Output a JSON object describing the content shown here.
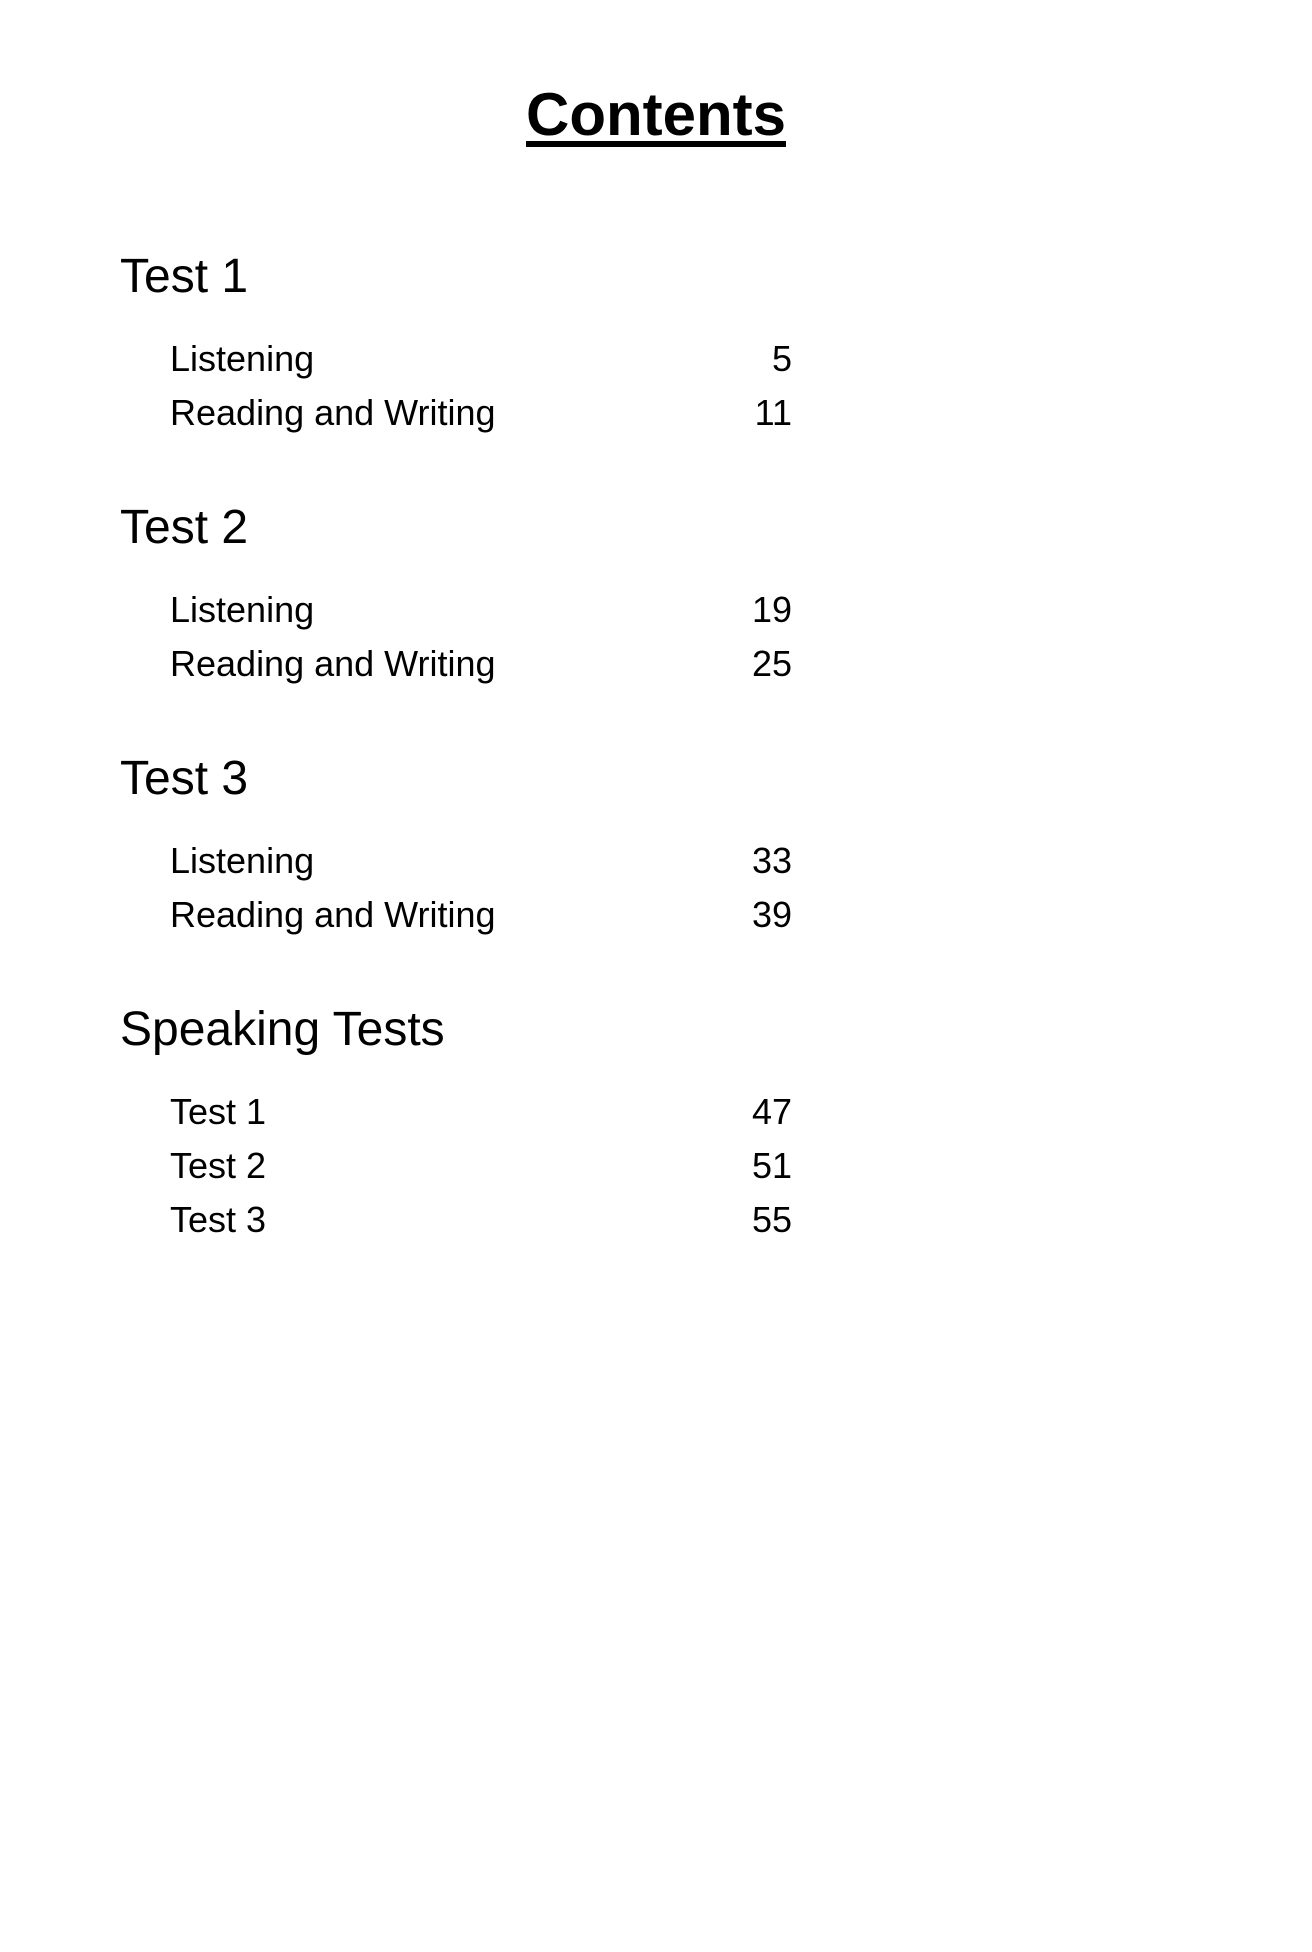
{
  "title": "Contents",
  "typography": {
    "font_family": "Comic Sans MS",
    "title_fontsize": 60,
    "heading_fontsize": 48,
    "row_fontsize": 36,
    "text_color": "#000000",
    "background_color": "#ffffff"
  },
  "sections": [
    {
      "heading": "Test 1",
      "items": [
        {
          "label": "Listening",
          "page": "5"
        },
        {
          "label": "Reading and Writing",
          "page": "11"
        }
      ]
    },
    {
      "heading": "Test 2",
      "items": [
        {
          "label": "Listening",
          "page": "19"
        },
        {
          "label": "Reading and Writing",
          "page": "25"
        }
      ]
    },
    {
      "heading": "Test 3",
      "items": [
        {
          "label": "Listening",
          "page": "33"
        },
        {
          "label": "Reading and Writing",
          "page": "39"
        }
      ]
    },
    {
      "heading": "Speaking Tests",
      "items": [
        {
          "label": "Test 1",
          "page": "47"
        },
        {
          "label": "Test 2",
          "page": "51"
        },
        {
          "label": "Test 3",
          "page": "55"
        }
      ]
    }
  ]
}
